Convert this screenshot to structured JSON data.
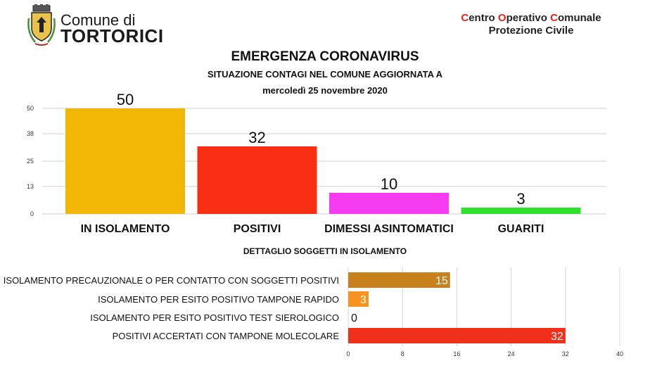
{
  "header": {
    "comune_prefix": "Comune di",
    "comune_name": "TORTORICI",
    "coc_title": "Centro Operativo Comunale",
    "coc_subtitle": "Protezione Civile"
  },
  "titles": {
    "main": "EMERGENZA CORONAVIRUS",
    "subtitle": "SITUAZIONE CONTAGI NEL COMUNE AGGIORNATA A",
    "date": "mercoledì 25 novembre 2020",
    "detail": "DETTAGLIO SOGGETTI IN ISOLAMENTO"
  },
  "colors": {
    "isolamento": "#f2b705",
    "positivi": "#f82e15",
    "dimessi": "#f53cf0",
    "guariti": "#2fe02a",
    "precauzionale": "#c8801c",
    "rapido": "#f7931e",
    "sierologico": "#f7931e",
    "molecolare": "#f0301a",
    "red_accent": "#e0261b"
  },
  "chart_data": [
    {
      "type": "bar",
      "categories": [
        "IN ISOLAMENTO",
        "POSITIVI",
        "DIMESSI ASINTOMATICI",
        "GUARITI"
      ],
      "values": [
        50,
        32,
        10,
        3
      ],
      "y_ticks": [
        0,
        13,
        25,
        38,
        50
      ],
      "ylim": [
        0,
        50
      ],
      "grid": true,
      "data_labels": true
    },
    {
      "type": "bar",
      "orientation": "horizontal",
      "categories": [
        "ISOLAMENTO PRECAUZIONALE O PER CONTATTO CON SOGGETTI POSITIVI",
        "ISOLAMENTO PER ESITO POSITIVO TAMPONE RAPIDO",
        "ISOLAMENTO PER ESITO POSITIVO TEST SIEROLOGICO",
        "POSITIVI ACCERTATI CON TAMPONE MOLECOLARE"
      ],
      "values": [
        15,
        3,
        0,
        32
      ],
      "x_ticks": [
        0,
        8,
        16,
        24,
        32,
        40
      ],
      "xlim": [
        0,
        40
      ],
      "grid": true,
      "data_labels": true
    }
  ]
}
